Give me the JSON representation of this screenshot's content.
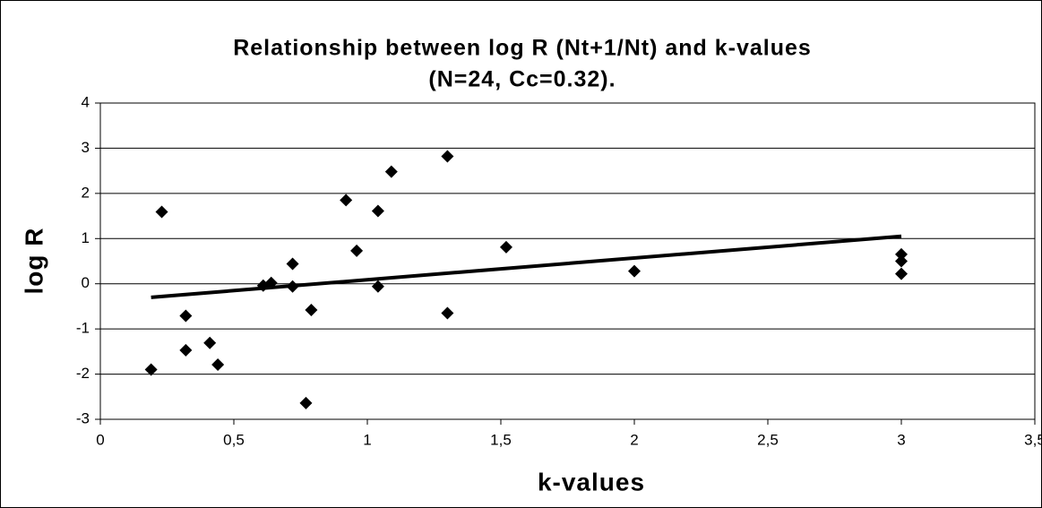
{
  "chart_data": {
    "type": "scatter",
    "title": [
      "Relationship between log R (Nt+1/Nt) and k-values",
      "(N=24, Cc=0.32)."
    ],
    "x_label": "k-values",
    "y_label": "log R",
    "x": [
      0.19,
      0.23,
      0.32,
      0.32,
      0.41,
      0.44,
      0.61,
      0.64,
      0.72,
      0.72,
      0.77,
      0.79,
      0.92,
      0.96,
      1.04,
      1.04,
      1.09,
      1.3,
      1.3,
      1.52,
      2.0,
      3,
      3,
      3
    ],
    "values": [
      -1.9,
      1.59,
      -0.71,
      -1.47,
      -1.31,
      -1.79,
      -0.04,
      0.02,
      0.44,
      -0.06,
      -2.64,
      -0.58,
      1.85,
      0.73,
      1.61,
      -0.06,
      2.48,
      2.82,
      -0.65,
      0.81,
      0.28,
      0.65,
      0.5,
      0.22
    ],
    "color": "#000000",
    "trendline": {
      "x": [
        0.19,
        3
      ],
      "y": [
        -0.3,
        1.05
      ],
      "color": "#000000"
    },
    "xlim": [
      0,
      3.5
    ],
    "ylim": [
      -3,
      4
    ],
    "xticks": [
      0,
      {
        "value": 0.5,
        "label": "0,5"
      },
      1,
      {
        "value": 1.5,
        "label": "1,5"
      },
      2,
      {
        "value": 2.5,
        "label": "2,5"
      },
      3,
      {
        "value": 3.5,
        "label": "3,5"
      }
    ],
    "yticks": [
      -3,
      -2,
      -1,
      0,
      1,
      2,
      3,
      4
    ],
    "grid": true
  }
}
